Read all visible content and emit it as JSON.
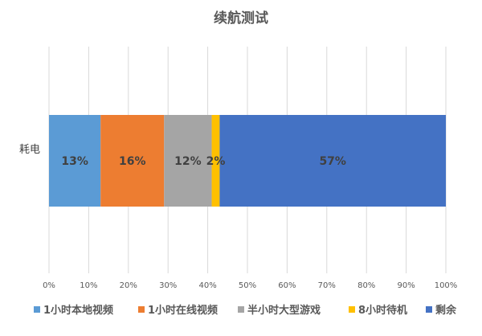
{
  "chart_data": {
    "type": "bar",
    "orientation": "horizontal",
    "stacked": "percent",
    "title": "续航测试",
    "categories": [
      "耗电"
    ],
    "series": [
      {
        "name": "1小时本地视频",
        "values": [
          13
        ],
        "label": "13%",
        "color": "#5B9BD5"
      },
      {
        "name": "1小时在线视频",
        "values": [
          16
        ],
        "label": "16%",
        "color": "#ED7D31"
      },
      {
        "name": "半小时大型游戏",
        "values": [
          12
        ],
        "label": "12%",
        "color": "#A5A5A5"
      },
      {
        "name": "8小时待机",
        "values": [
          2
        ],
        "label": "2%",
        "color": "#FFC000"
      },
      {
        "name": "剩余",
        "values": [
          57
        ],
        "label": "57%",
        "color": "#4472C4"
      }
    ],
    "xlim": [
      0,
      100
    ],
    "xticks": [
      "0%",
      "10%",
      "20%",
      "30%",
      "40%",
      "50%",
      "60%",
      "70%",
      "80%",
      "90%",
      "100%"
    ],
    "grid": true,
    "legend_position": "bottom"
  }
}
